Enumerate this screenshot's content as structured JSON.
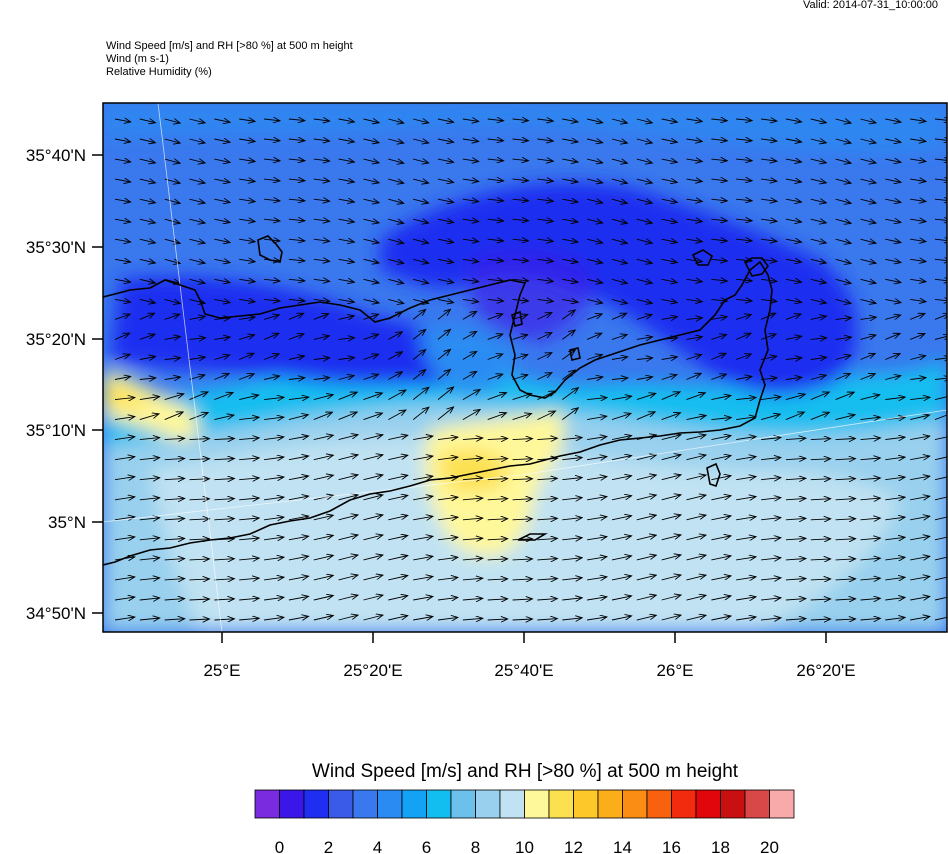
{
  "valid_time": "Valid: 2014-07-31_10:00:00",
  "header": {
    "line1": "Wind Speed [m/s] and RH [>80 %] at 500 m height",
    "line2": "Wind   (m s-1)",
    "line3": "Relative Humidity   (%)"
  },
  "map": {
    "lat_labels": [
      "35°40'N",
      "35°30'N",
      "35°20'N",
      "35°10'N",
      "35°N",
      "34°50'N"
    ],
    "lon_labels": [
      "25°E",
      "25°20'E",
      "25°40'E",
      "26°E",
      "26°20'E"
    ],
    "wind_arrow_color": "#000000",
    "coastline_color": "#000000"
  },
  "legend": {
    "title": "Wind Speed [m/s] and RH [>80 %] at 500 m height",
    "colors": [
      "#7a2be0",
      "#3a17e8",
      "#1f2ef0",
      "#3a5ae8",
      "#3a78ee",
      "#2a8cf2",
      "#14a2f4",
      "#12bef0",
      "#6cc0ec",
      "#98d0ee",
      "#c0e2f2",
      "#fff89a",
      "#fde050",
      "#fdc82a",
      "#fcae1a",
      "#fb8c14",
      "#f8620e",
      "#f22a0e",
      "#e0060c",
      "#c81010",
      "#d84848",
      "#f8aaaa"
    ],
    "tick_labels": [
      "0",
      "2",
      "4",
      "6",
      "8",
      "10",
      "12",
      "14",
      "16",
      "18",
      "20"
    ]
  }
}
